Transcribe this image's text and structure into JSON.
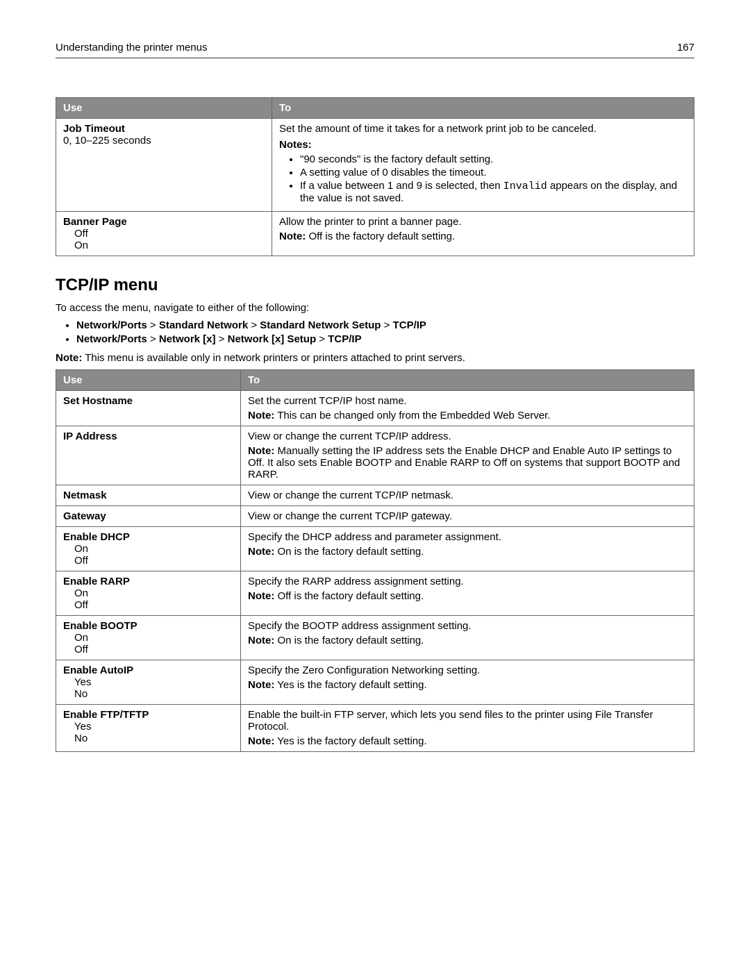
{
  "header": {
    "title": "Understanding the printer menus",
    "page": "167"
  },
  "table1": {
    "headers": [
      "Use",
      "To"
    ],
    "rows": [
      {
        "use_title": "Job Timeout",
        "use_sub": "0, 10–225 seconds",
        "desc_main": "Set the amount of time it takes for a network print job to be canceled.",
        "notes_label": "Notes:",
        "bullets": [
          "\"90 seconds\" is the factory default setting.",
          "A setting value of 0 disables the timeout.",
          "If a value between 1 and 9 is selected, then "
        ],
        "invalid_code": "Invalid",
        "bullet3_tail": " appears on the display, and the value is not saved."
      },
      {
        "use_title": "Banner Page",
        "opts": [
          "Off",
          "On"
        ],
        "desc_main": "Allow the printer to print a banner page.",
        "note_label": "Note:",
        "note_text": " Off is the factory default setting."
      }
    ]
  },
  "section": {
    "heading": "TCP/IP menu",
    "intro": "To access the menu, navigate to either of the following:",
    "nav": [
      [
        "Network/Ports",
        " > ",
        "Standard Network",
        " > ",
        "Standard Network Setup",
        " > ",
        "TCP/IP"
      ],
      [
        "Network/Ports",
        " > ",
        "Network [x]",
        " > ",
        "Network [x] Setup",
        " > ",
        "TCP/IP"
      ]
    ],
    "note_label": "Note:",
    "note_text": " This menu is available only in network printers or printers attached to print servers."
  },
  "table2": {
    "headers": [
      "Use",
      "To"
    ],
    "rows": [
      {
        "use_title": "Set Hostname",
        "opts": [],
        "lines": [
          "Set the current TCP/IP host name.",
          {
            "note_label": "Note:",
            "text": " This can be changed only from the Embedded Web Server."
          }
        ]
      },
      {
        "use_title": "IP Address",
        "opts": [],
        "lines": [
          "View or change the current TCP/IP address.",
          {
            "note_label": "Note:",
            "text": " Manually setting the IP address sets the Enable DHCP and Enable Auto IP settings to Off. It also sets Enable BOOTP and Enable RARP to Off on systems that support BOOTP and RARP."
          }
        ]
      },
      {
        "use_title": "Netmask",
        "opts": [],
        "lines": [
          "View or change the current TCP/IP netmask."
        ]
      },
      {
        "use_title": "Gateway",
        "opts": [],
        "lines": [
          "View or change the current TCP/IP gateway."
        ]
      },
      {
        "use_title": "Enable DHCP",
        "opts": [
          "On",
          "Off"
        ],
        "lines": [
          "Specify the DHCP address and parameter assignment.",
          {
            "note_label": "Note:",
            "text": " On is the factory default setting."
          }
        ]
      },
      {
        "use_title": "Enable RARP",
        "opts": [
          "On",
          "Off"
        ],
        "lines": [
          "Specify the RARP address assignment setting.",
          {
            "note_label": "Note:",
            "text": " Off is the factory default setting."
          }
        ]
      },
      {
        "use_title": "Enable BOOTP",
        "opts": [
          "On",
          "Off"
        ],
        "lines": [
          "Specify the BOOTP address assignment setting.",
          {
            "note_label": "Note:",
            "text": " On is the factory default setting."
          }
        ]
      },
      {
        "use_title": "Enable AutoIP",
        "opts": [
          "Yes",
          "No"
        ],
        "lines": [
          "Specify the Zero Configuration Networking setting.",
          {
            "note_label": "Note:",
            "text": " Yes is the factory default setting."
          }
        ]
      },
      {
        "use_title": "Enable FTP/TFTP",
        "opts": [
          "Yes",
          "No"
        ],
        "lines": [
          "Enable the built-in FTP server, which lets you send files to the printer using File Transfer Protocol.",
          {
            "note_label": "Note:",
            "text": " Yes is the factory default setting."
          }
        ]
      }
    ]
  }
}
